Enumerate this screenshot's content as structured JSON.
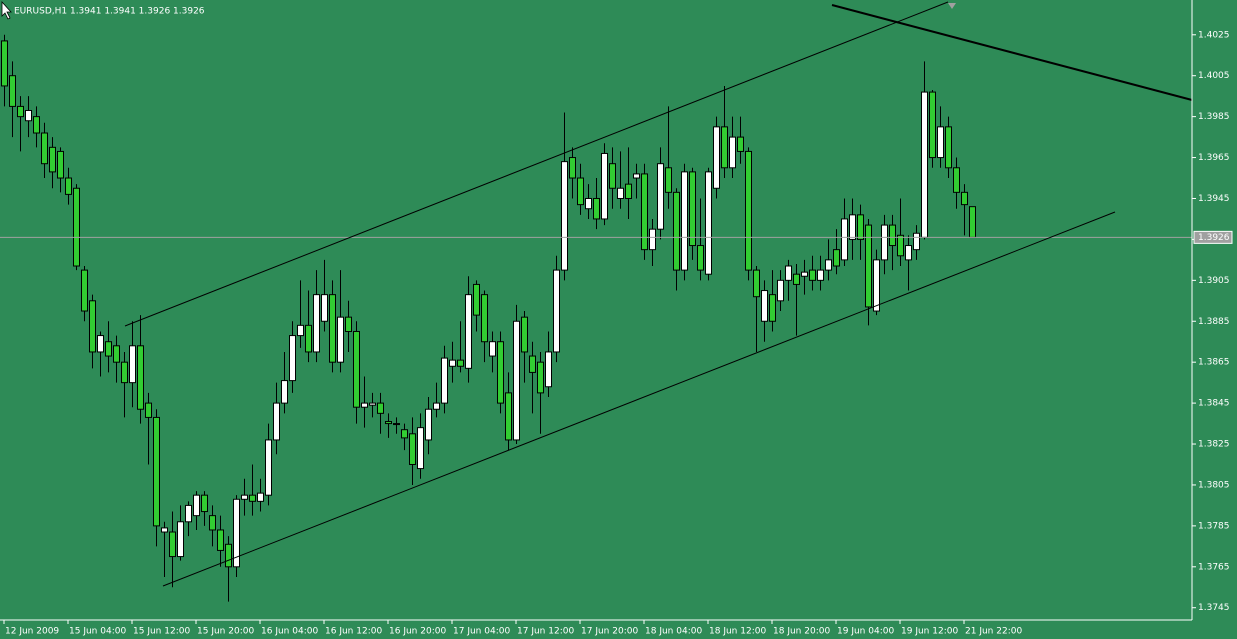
{
  "chart_data": {
    "type": "candlestick",
    "title": "EURUSD,H1  1.3941 1.3941 1.3926 1.3926",
    "categories": [
      "12 Jun 2009",
      null,
      null,
      null,
      null,
      null,
      null,
      null,
      "15 Jun 04:00",
      null,
      null,
      null,
      null,
      null,
      null,
      null,
      "15 Jun 12:00",
      null,
      null,
      null,
      null,
      null,
      null,
      null,
      "15 Jun 20:00",
      null,
      null,
      null,
      null,
      null,
      null,
      null,
      "16 Jun 04:00",
      null,
      null,
      null,
      null,
      null,
      null,
      null,
      "16 Jun 12:00",
      null,
      null,
      null,
      null,
      null,
      null,
      null,
      "16 Jun 20:00",
      null,
      null,
      null,
      null,
      null,
      null,
      null,
      "17 Jun 04:00",
      null,
      null,
      null,
      null,
      null,
      null,
      null,
      "17 Jun 12:00",
      null,
      null,
      null,
      null,
      null,
      null,
      null,
      "17 Jun 20:00",
      null,
      null,
      null,
      null,
      null,
      null,
      null,
      "18 Jun 04:00",
      null,
      null,
      null,
      null,
      null,
      null,
      null,
      "18 Jun 12:00",
      null,
      null,
      null,
      null,
      null,
      null,
      null,
      "18 Jun 20:00",
      null,
      null,
      null,
      null,
      null,
      null,
      null,
      "19 Jun 04:00",
      null,
      null,
      null,
      null,
      null,
      null,
      null,
      "19 Jun 12:00",
      null,
      null,
      null,
      null,
      null,
      null,
      null,
      "21 Jun 22:00",
      null
    ],
    "open": [
      1.4022,
      1.4005,
      1.399,
      1.3983,
      1.3985,
      1.3977,
      1.397,
      1.3968,
      1.3955,
      1.395,
      1.391,
      1.3895,
      1.387,
      1.3875,
      1.3873,
      1.3865,
      1.3855,
      1.3873,
      1.3845,
      1.3838,
      1.3782,
      1.3782,
      1.377,
      1.3787,
      1.379,
      1.38,
      1.379,
      1.3783,
      1.3776,
      1.3765,
      1.3798,
      1.38,
      1.3797,
      1.38,
      1.3827,
      1.3845,
      1.3856,
      1.3878,
      1.3883,
      1.387,
      1.3885,
      1.3898,
      1.3865,
      1.3887,
      1.388,
      1.3843,
      1.3844,
      1.3845,
      1.3836,
      1.3835,
      1.3832,
      1.383,
      1.3813,
      1.3827,
      1.3842,
      1.3845,
      1.3863,
      1.3866,
      1.3862,
      1.3903,
      1.3898,
      1.3868,
      1.3875,
      1.385,
      1.3827,
      1.3887,
      1.3868,
      1.3865,
      1.3853,
      1.387,
      1.391,
      1.3965,
      1.3955,
      1.394,
      1.3945,
      1.3935,
      1.3962,
      1.3945,
      1.3952,
      1.3955,
      1.3957,
      1.392,
      1.393,
      1.396,
      1.3948,
      1.391,
      1.3958,
      1.3922,
      1.3908,
      1.395,
      1.398,
      1.396,
      1.3975,
      1.3968,
      1.391,
      1.3885,
      1.3898,
      1.3895,
      1.3905,
      1.3908,
      1.3907,
      1.391,
      1.3905,
      1.391,
      1.392,
      1.3915,
      1.3925,
      1.3937,
      1.3932,
      1.389,
      1.3915,
      1.3932,
      1.3927,
      1.3915,
      1.392,
      1.3926,
      1.3997,
      1.3965,
      1.398,
      1.396,
      1.3948,
      1.3941
    ],
    "high": [
      1.4025,
      1.4012,
      1.3995,
      1.3995,
      1.399,
      1.3982,
      1.3975,
      1.397,
      1.396,
      1.3952,
      1.3912,
      1.3898,
      1.388,
      1.3885,
      1.3878,
      1.387,
      1.3885,
      1.3888,
      1.385,
      1.3842,
      1.3787,
      1.3792,
      1.3795,
      1.3797,
      1.3802,
      1.3802,
      1.3795,
      1.379,
      1.378,
      1.38,
      1.3808,
      1.3815,
      1.3808,
      1.3835,
      1.3855,
      1.387,
      1.3885,
      1.3905,
      1.39,
      1.391,
      1.3915,
      1.3905,
      1.391,
      1.3895,
      1.3885,
      1.3858,
      1.385,
      1.385,
      1.384,
      1.3838,
      1.3835,
      1.3838,
      1.384,
      1.3848,
      1.3855,
      1.3873,
      1.3875,
      1.3885,
      1.3907,
      1.3905,
      1.39,
      1.388,
      1.388,
      1.386,
      1.3893,
      1.389,
      1.3875,
      1.387,
      1.388,
      1.3917,
      1.3987,
      1.397,
      1.3962,
      1.3952,
      1.3955,
      1.3972,
      1.397,
      1.3968,
      1.397,
      1.3962,
      1.3962,
      1.3935,
      1.397,
      1.399,
      1.395,
      1.3962,
      1.396,
      1.3945,
      1.396,
      1.3985,
      1.4,
      1.3985,
      1.3985,
      1.397,
      1.3912,
      1.3905,
      1.391,
      1.391,
      1.3915,
      1.3913,
      1.3915,
      1.3917,
      1.3917,
      1.3925,
      1.393,
      1.3945,
      1.3945,
      1.3942,
      1.3935,
      1.392,
      1.3937,
      1.3937,
      1.3945,
      1.3927,
      1.3932,
      1.4012,
      1.3998,
      1.399,
      1.3985,
      1.3965,
      1.3952,
      1.3941
    ],
    "low": [
      1.399,
      1.3975,
      1.3968,
      1.3975,
      1.397,
      1.3955,
      1.395,
      1.3948,
      1.3942,
      1.391,
      1.3885,
      1.3862,
      1.3858,
      1.386,
      1.3855,
      1.3838,
      1.3843,
      1.3835,
      1.3815,
      1.3775,
      1.376,
      1.3755,
      1.3768,
      1.378,
      1.3783,
      1.3785,
      1.3775,
      1.3765,
      1.3748,
      1.376,
      1.379,
      1.379,
      1.3792,
      1.3795,
      1.382,
      1.384,
      1.385,
      1.3872,
      1.3865,
      1.3865,
      1.388,
      1.386,
      1.386,
      1.387,
      1.3835,
      1.3833,
      1.3838,
      1.383,
      1.3828,
      1.383,
      1.3822,
      1.3805,
      1.3808,
      1.382,
      1.3838,
      1.384,
      1.3855,
      1.386,
      1.3855,
      1.388,
      1.3865,
      1.386,
      1.384,
      1.3822,
      1.3825,
      1.3855,
      1.384,
      1.383,
      1.3848,
      1.3865,
      1.3905,
      1.3945,
      1.3937,
      1.3935,
      1.393,
      1.3932,
      1.394,
      1.394,
      1.3935,
      1.3945,
      1.3915,
      1.3912,
      1.3925,
      1.394,
      1.39,
      1.3905,
      1.3915,
      1.3905,
      1.3905,
      1.3945,
      1.3955,
      1.3955,
      1.3962,
      1.3905,
      1.387,
      1.3875,
      1.388,
      1.389,
      1.3895,
      1.3878,
      1.3898,
      1.39,
      1.39,
      1.3905,
      1.3908,
      1.3912,
      1.3915,
      1.3915,
      1.3883,
      1.3888,
      1.3908,
      1.391,
      1.3912,
      1.39,
      1.3915,
      1.3925,
      1.396,
      1.396,
      1.3955,
      1.394,
      1.3927,
      1.3926
    ],
    "close": [
      1.4,
      1.399,
      1.3985,
      1.3988,
      1.3977,
      1.3962,
      1.3958,
      1.3955,
      1.3947,
      1.3912,
      1.389,
      1.387,
      1.3878,
      1.3868,
      1.3865,
      1.3855,
      1.3873,
      1.3842,
      1.3838,
      1.3785,
      1.3784,
      1.377,
      1.3787,
      1.3795,
      1.38,
      1.3792,
      1.3783,
      1.3773,
      1.3765,
      1.3798,
      1.38,
      1.3797,
      1.3801,
      1.3827,
      1.3845,
      1.3856,
      1.3878,
      1.3883,
      1.387,
      1.3898,
      1.3898,
      1.3865,
      1.3887,
      1.388,
      1.3843,
      1.3845,
      1.3845,
      1.384,
      1.3835,
      1.3835,
      1.3828,
      1.3815,
      1.3833,
      1.3842,
      1.3845,
      1.3867,
      1.3866,
      1.3863,
      1.3898,
      1.3888,
      1.3875,
      1.3875,
      1.3845,
      1.3827,
      1.3885,
      1.387,
      1.386,
      1.385,
      1.387,
      1.391,
      1.3963,
      1.3955,
      1.3942,
      1.3945,
      1.3935,
      1.3967,
      1.395,
      1.395,
      1.3945,
      1.3957,
      1.392,
      1.393,
      1.3962,
      1.3948,
      1.391,
      1.3958,
      1.3922,
      1.391,
      1.3958,
      1.398,
      1.396,
      1.3975,
      1.3968,
      1.391,
      1.3897,
      1.39,
      1.3885,
      1.3905,
      1.3912,
      1.3903,
      1.3909,
      1.3905,
      1.391,
      1.3915,
      1.3912,
      1.3935,
      1.3937,
      1.3925,
      1.3892,
      1.3915,
      1.3932,
      1.3922,
      1.3917,
      1.3922,
      1.3928,
      1.3997,
      1.3965,
      1.398,
      1.396,
      1.3948,
      1.3942,
      1.3926
    ],
    "up_color": "#ffffff",
    "down_color": "#32cd32",
    "current_price": 1.3926,
    "ylim": [
      1.3739,
      1.4042
    ],
    "yticks": [
      1.3745,
      1.3765,
      1.3785,
      1.3805,
      1.3825,
      1.3845,
      1.3865,
      1.3885,
      1.3905,
      1.3925,
      1.3945,
      1.3965,
      1.3985,
      1.4005,
      1.4025
    ]
  }
}
